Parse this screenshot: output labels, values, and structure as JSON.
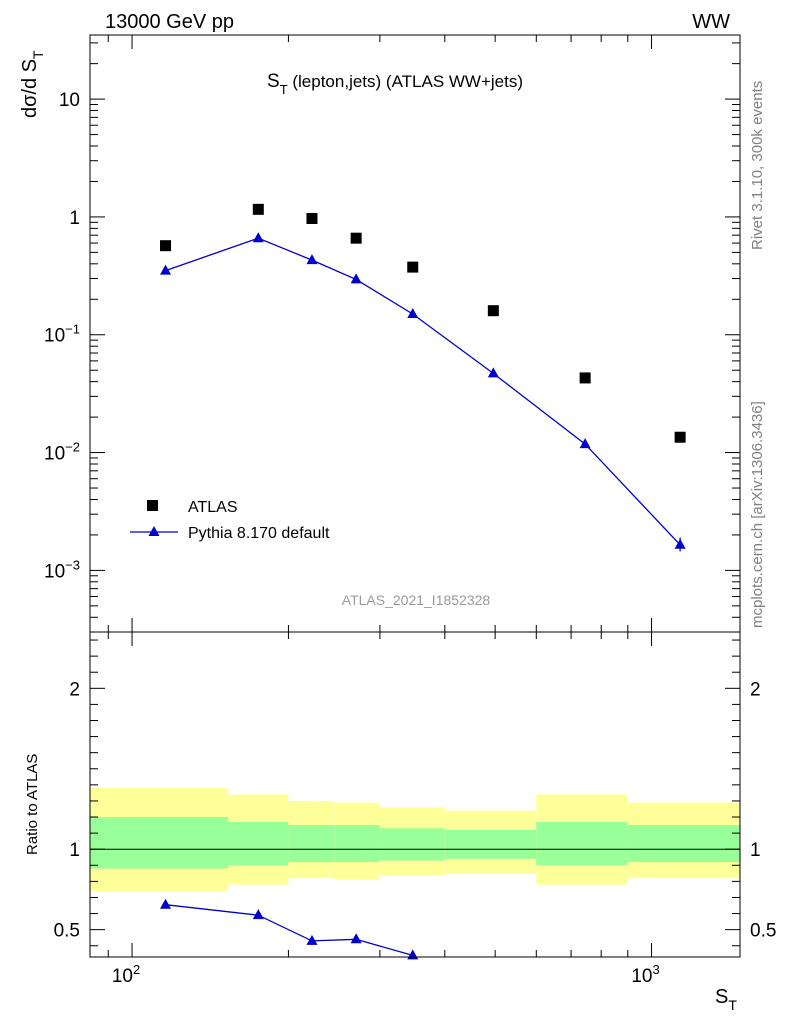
{
  "header": {
    "energy_label": "13000 GeV pp",
    "process_label": "WW"
  },
  "side_labels": {
    "rivet": "Rivet 3.1.10,  300k events",
    "mcplots": "mcplots.cern.ch [arXiv:1306.3436]"
  },
  "colors": {
    "data": "#000000",
    "mc": "#0000cc",
    "band_inner": "#99ff99",
    "band_outer": "#ffff99"
  },
  "chart_data": [
    {
      "type": "scatter",
      "title_main": "S",
      "title_sub": "T",
      "title_rest": " (lepton,jets) (ATLAS WW+jets)",
      "ylabel_main": "dσ/d S",
      "ylabel_sub": "T",
      "xscale": "log",
      "yscale": "log",
      "xlim": [
        83,
        1480
      ],
      "ylim": [
        0.0003,
        35
      ],
      "y_ticks": [
        {
          "value": 10,
          "label": "10"
        },
        {
          "value": 1,
          "label": "1"
        },
        {
          "value": 0.1,
          "base": "10",
          "exp": "−1"
        },
        {
          "value": 0.01,
          "base": "10",
          "exp": "−2"
        },
        {
          "value": 0.001,
          "base": "10",
          "exp": "−3"
        }
      ],
      "watermark": "ATLAS_2021_I1852328",
      "legend_position": "lower-left",
      "series": [
        {
          "name": "ATLAS",
          "marker": "square",
          "x": [
            116,
            175,
            222,
            270,
            347,
            496,
            745,
            1135
          ],
          "y": [
            0.57,
            1.16,
            0.97,
            0.66,
            0.375,
            0.16,
            0.043,
            0.0135
          ]
        },
        {
          "name": "Pythia 8.170 default",
          "marker": "triangle",
          "x": [
            116,
            175,
            222,
            270,
            347,
            496,
            745,
            1135
          ],
          "y": [
            0.35,
            0.66,
            0.43,
            0.295,
            0.15,
            0.047,
            0.0118,
            0.00165
          ]
        }
      ]
    },
    {
      "type": "line",
      "ylabel": "Ratio to ATLAS",
      "xlabel_main": "S",
      "xlabel_sub": "T",
      "xscale": "log",
      "xlim": [
        83,
        1480
      ],
      "ylim": [
        0.33,
        2.35
      ],
      "y_ticks": [
        {
          "value": 2,
          "label": "2"
        },
        {
          "value": 1,
          "label": "1"
        },
        {
          "value": 0.5,
          "label": "0.5"
        }
      ],
      "x_ticks": [
        {
          "value": 100,
          "base": "10",
          "exp": "2"
        },
        {
          "value": 1000,
          "base": "10",
          "exp": "3"
        }
      ],
      "reference": 1,
      "bands": [
        {
          "x_low": 83,
          "x_high": 153,
          "inner": [
            0.88,
            1.2
          ],
          "outer": [
            0.74,
            1.38
          ]
        },
        {
          "x_low": 153,
          "x_high": 200,
          "inner": [
            0.9,
            1.17
          ],
          "outer": [
            0.78,
            1.34
          ]
        },
        {
          "x_low": 200,
          "x_high": 245,
          "inner": [
            0.92,
            1.15
          ],
          "outer": [
            0.82,
            1.3
          ]
        },
        {
          "x_low": 245,
          "x_high": 300,
          "inner": [
            0.92,
            1.15
          ],
          "outer": [
            0.81,
            1.29
          ]
        },
        {
          "x_low": 300,
          "x_high": 400,
          "inner": [
            0.93,
            1.13
          ],
          "outer": [
            0.84,
            1.26
          ]
        },
        {
          "x_low": 400,
          "x_high": 600,
          "inner": [
            0.94,
            1.12
          ],
          "outer": [
            0.85,
            1.24
          ]
        },
        {
          "x_low": 600,
          "x_high": 900,
          "inner": [
            0.9,
            1.17
          ],
          "outer": [
            0.78,
            1.34
          ]
        },
        {
          "x_low": 900,
          "x_high": 1480,
          "inner": [
            0.92,
            1.15
          ],
          "outer": [
            0.82,
            1.29
          ]
        }
      ],
      "series": [
        {
          "name": "Pythia 8.170 default",
          "marker": "triangle",
          "x": [
            116,
            175,
            222,
            270,
            347
          ],
          "y": [
            0.655,
            0.59,
            0.43,
            0.44,
            0.34
          ]
        }
      ]
    }
  ]
}
